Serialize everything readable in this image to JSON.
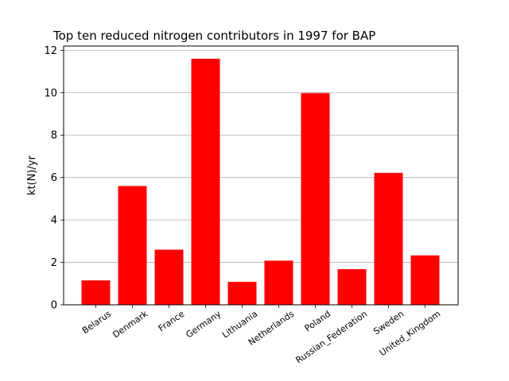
{
  "chart_data": {
    "type": "bar",
    "title": "Top ten reduced nitrogen contributors in 1997 for  BAP",
    "xlabel": "",
    "ylabel": "kt(N)/yr",
    "categories": [
      "Belarus",
      "Denmark",
      "France",
      "Germany",
      "Lithuania",
      "Netherlands",
      "Poland",
      "Russian_Federation",
      "Sweden",
      "United_Kingdom"
    ],
    "values": [
      1.15,
      5.6,
      2.6,
      11.6,
      1.08,
      2.08,
      9.98,
      1.68,
      6.22,
      2.33
    ],
    "yticks": [
      0,
      2,
      4,
      6,
      8,
      10,
      12
    ],
    "ylim": [
      0,
      12.2
    ],
    "grid": "horizontal",
    "bar_color": "#ff0000"
  }
}
